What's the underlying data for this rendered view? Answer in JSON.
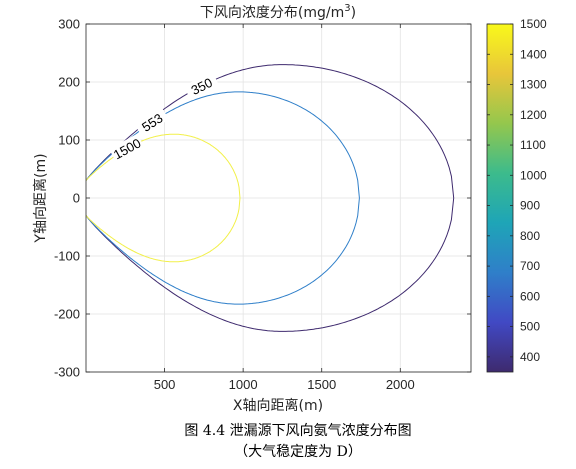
{
  "chart_data": {
    "type": "contour",
    "title": "下风向浓度分布(mg/m",
    "title_sup": "3",
    "title_close": ")",
    "xlabel": "X轴向距离(m)",
    "ylabel": "Y轴向距离(m)",
    "xlim": [
      0,
      2450
    ],
    "ylim": [
      -300,
      300
    ],
    "xticks": [
      500,
      1000,
      1500,
      2000
    ],
    "yticks": [
      -300,
      -200,
      -100,
      0,
      100,
      200,
      300
    ],
    "grid": true,
    "contours": [
      {
        "level": 350,
        "label": "350",
        "color": "#3e2a6e",
        "x_max": 2340,
        "peak_x": 1250,
        "half_width": 230
      },
      {
        "level": 553,
        "label": "553",
        "color": "#2f7fc9",
        "x_max": 1740,
        "peak_x": 970,
        "half_width": 183
      },
      {
        "level": 1500,
        "label": "1500",
        "color": "#f2f04a",
        "x_max": 980,
        "peak_x": 560,
        "half_width": 110
      }
    ],
    "colorbar": {
      "min": 350,
      "max": 1500,
      "ticks": [
        400,
        500,
        600,
        700,
        800,
        900,
        1000,
        1100,
        1200,
        1300,
        1400,
        1500
      ],
      "colors": [
        "#3e2a6e",
        "#4149c4",
        "#2f7fc9",
        "#1ea5b7",
        "#3cbb8c",
        "#94c74d",
        "#e8c63a",
        "#f9f91a"
      ]
    }
  },
  "caption": {
    "line1": "图 4.4 泄漏源下风向氨气浓度分布图",
    "line2": "（大气稳定度为 D）"
  }
}
